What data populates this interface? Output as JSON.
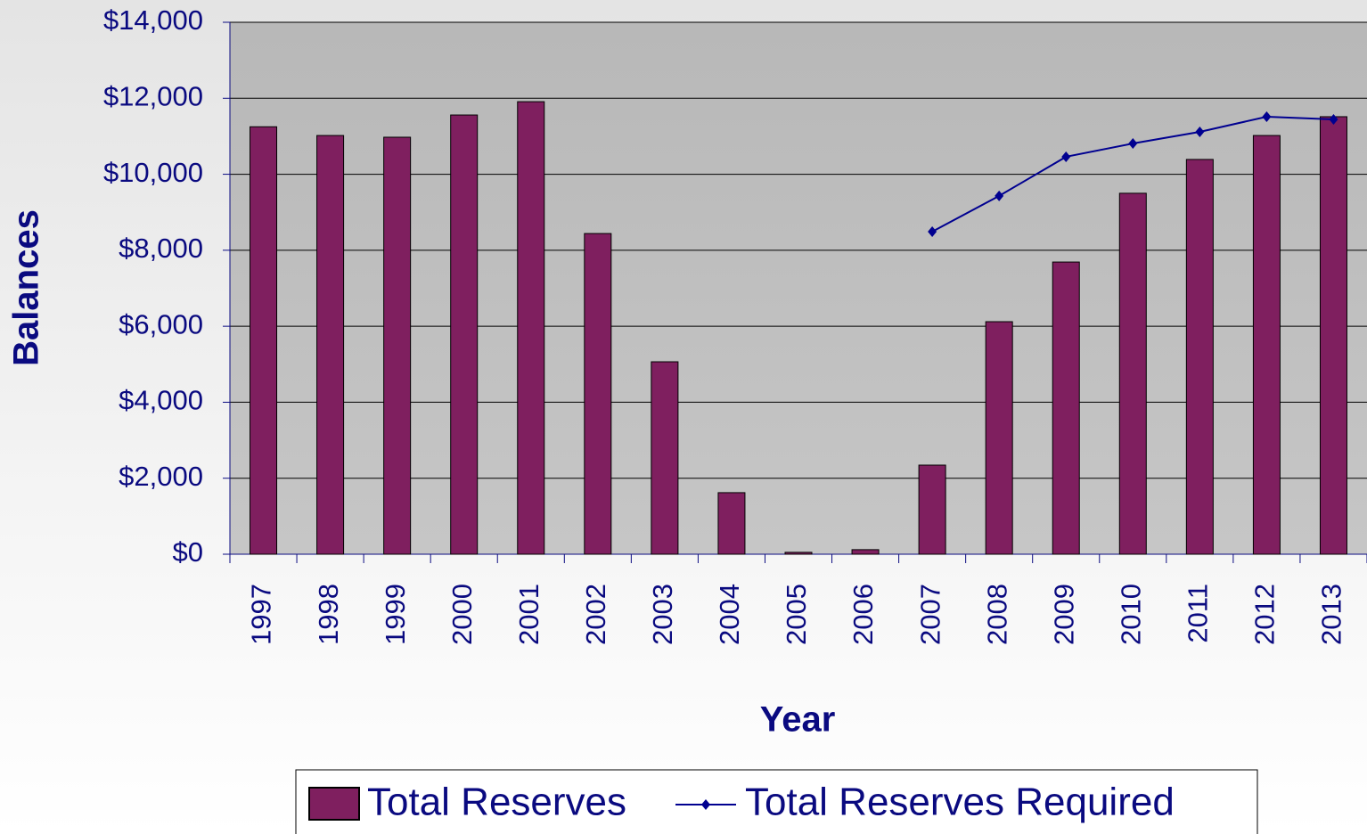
{
  "chart_data": {
    "type": "bar",
    "x_label": "Year",
    "y_label": "Balances",
    "categories": [
      "1997",
      "1998",
      "1999",
      "2000",
      "2001",
      "2002",
      "2003",
      "2004",
      "2005",
      "2006",
      "2007",
      "2008",
      "2009",
      "2010",
      "2011",
      "2012",
      "2013"
    ],
    "series": [
      {
        "name": "Total Reserves",
        "type": "bar",
        "color": "#7f1f5f",
        "values": [
          11250,
          11020,
          10975,
          11560,
          11910,
          8440,
          5065,
          1620,
          50,
          120,
          2345,
          6120,
          7690,
          9500,
          10390,
          11020,
          11515
        ]
      },
      {
        "name": "Total Reserves Required",
        "type": "line",
        "color": "#000090",
        "values": [
          null,
          null,
          null,
          null,
          null,
          null,
          null,
          null,
          null,
          null,
          8490,
          9430,
          10460,
          10810,
          11115,
          11515,
          11445
        ]
      }
    ],
    "ylim": [
      0,
      14000
    ],
    "yticks": [
      {
        "value": 0,
        "label": "$0"
      },
      {
        "value": 2000,
        "label": "$2,000"
      },
      {
        "value": 4000,
        "label": "$4,000"
      },
      {
        "value": 6000,
        "label": "$6,000"
      },
      {
        "value": 8000,
        "label": "$8,000"
      },
      {
        "value": 10000,
        "label": "$10,000"
      },
      {
        "value": 12000,
        "label": "$12,000"
      },
      {
        "value": 14000,
        "label": "$14,000"
      }
    ],
    "grid": true,
    "legend": "bottom"
  }
}
